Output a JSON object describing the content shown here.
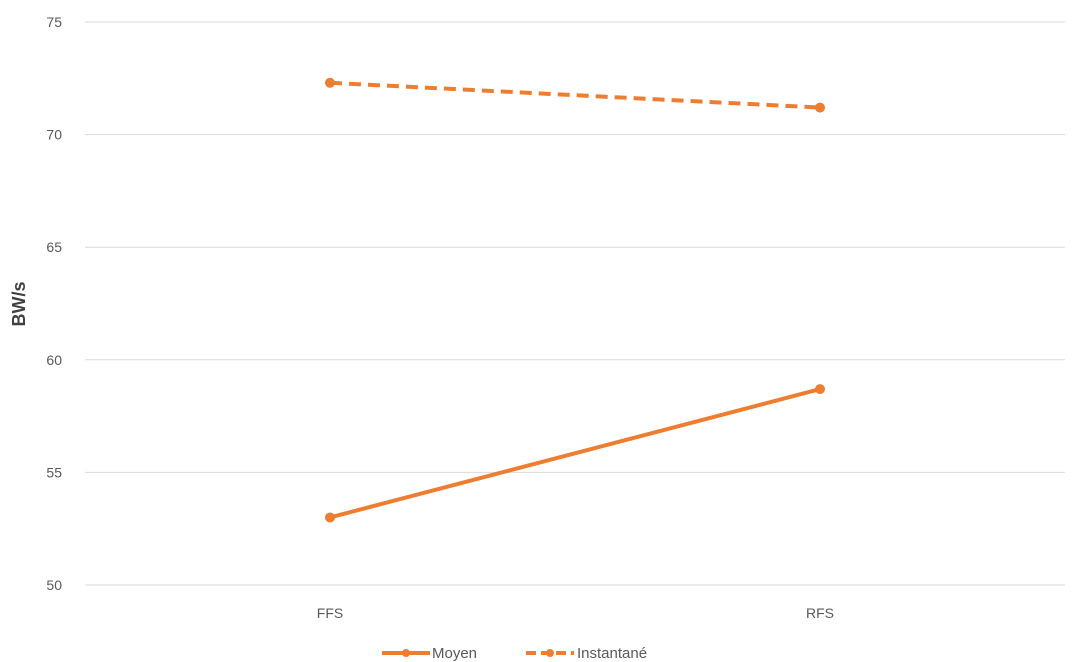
{
  "chart_data": {
    "type": "line",
    "title": "",
    "xlabel": "",
    "ylabel": "BW/s",
    "categories": [
      "FFS",
      "RFS"
    ],
    "ylim": [
      50,
      75
    ],
    "yticks": [
      50,
      55,
      60,
      65,
      70,
      75
    ],
    "grid": true,
    "legend_position": "bottom",
    "series": [
      {
        "name": "Moyen",
        "values": [
          53.0,
          58.7
        ],
        "color": "#ED7D31",
        "line_style": "solid",
        "marker": "circle"
      },
      {
        "name": "Instantané",
        "values": [
          72.3,
          71.2
        ],
        "color": "#ED7D31",
        "line_style": "dashed",
        "marker": "circle"
      }
    ]
  },
  "colors": {
    "gridline": "#d9d9d9",
    "tick_text": "#595959",
    "axis_title": "#404040"
  }
}
